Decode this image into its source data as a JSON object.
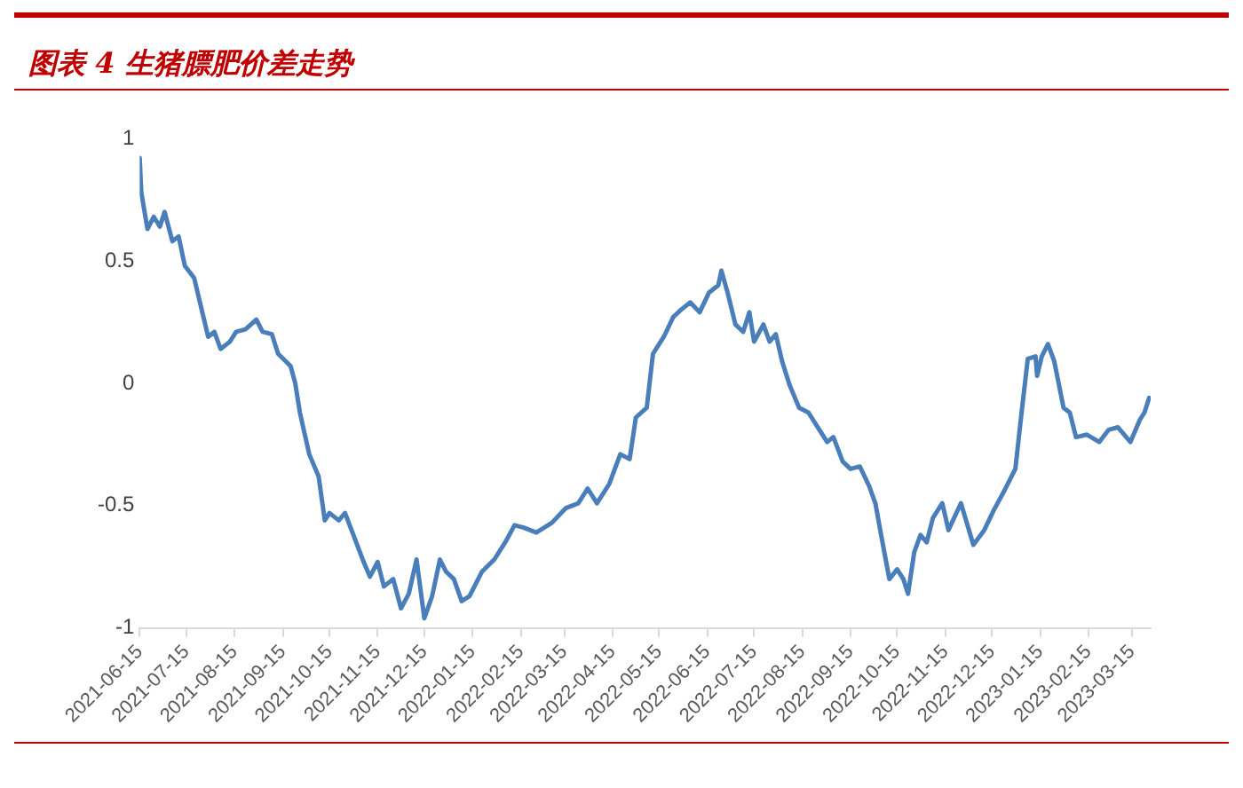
{
  "chart_data": {
    "type": "line",
    "title": "图表 4 生猪膘肥价差走势",
    "x": [
      "2021-06-15",
      "2021-06-16",
      "2021-06-20",
      "2021-06-24",
      "2021-06-28",
      "2021-07-01",
      "2021-07-06",
      "2021-07-10",
      "2021-07-14",
      "2021-07-20",
      "2021-07-26",
      "2021-07-29",
      "2021-08-02",
      "2021-08-06",
      "2021-08-12",
      "2021-08-16",
      "2021-08-22",
      "2021-08-29",
      "2021-09-02",
      "2021-09-08",
      "2021-09-12",
      "2021-09-20",
      "2021-09-23",
      "2021-09-26",
      "2021-10-02",
      "2021-10-08",
      "2021-10-12",
      "2021-10-15",
      "2021-10-21",
      "2021-10-25",
      "2021-10-31",
      "2021-11-06",
      "2021-11-10",
      "2021-11-15",
      "2021-11-19",
      "2021-11-25",
      "2021-11-30",
      "2021-12-05",
      "2021-12-10",
      "2021-12-15",
      "2021-12-20",
      "2021-12-25",
      "2021-12-29",
      "2022-01-03",
      "2022-01-08",
      "2022-01-13",
      "2022-01-21",
      "2022-01-29",
      "2022-02-05",
      "2022-02-11",
      "2022-02-17",
      "2022-02-25",
      "2022-03-07",
      "2022-03-16",
      "2022-03-24",
      "2022-03-30",
      "2022-04-05",
      "2022-04-13",
      "2022-04-20",
      "2022-04-26",
      "2022-04-30",
      "2022-05-07",
      "2022-05-11",
      "2022-05-18",
      "2022-05-24",
      "2022-05-29",
      "2022-06-04",
      "2022-06-10",
      "2022-06-16",
      "2022-06-22",
      "2022-06-24",
      "2022-06-28",
      "2022-07-03",
      "2022-07-08",
      "2022-07-12",
      "2022-07-15",
      "2022-07-21",
      "2022-07-25",
      "2022-07-29",
      "2022-08-02",
      "2022-08-07",
      "2022-08-13",
      "2022-08-19",
      "2022-08-25",
      "2022-08-31",
      "2022-09-04",
      "2022-09-10",
      "2022-09-15",
      "2022-09-21",
      "2022-09-27",
      "2022-10-01",
      "2022-10-05",
      "2022-10-10",
      "2022-10-15",
      "2022-10-19",
      "2022-10-22",
      "2022-10-26",
      "2022-10-30",
      "2022-11-03",
      "2022-11-07",
      "2022-11-13",
      "2022-11-17",
      "2022-11-25",
      "2022-12-03",
      "2022-12-10",
      "2022-12-16",
      "2022-12-22",
      "2022-12-30",
      "2023-01-03",
      "2023-01-07",
      "2023-01-12",
      "2023-01-13",
      "2023-01-16",
      "2023-01-20",
      "2023-01-24",
      "2023-01-30",
      "2023-02-03",
      "2023-02-07",
      "2023-02-14",
      "2023-02-22",
      "2023-02-28",
      "2023-03-06",
      "2023-03-14",
      "2023-03-20",
      "2023-03-23",
      "2023-03-26"
    ],
    "series": [
      {
        "color": "#4a7ebb",
        "values": [
          0.92,
          0.78,
          0.63,
          0.68,
          0.64,
          0.7,
          0.58,
          0.6,
          0.48,
          0.43,
          0.27,
          0.19,
          0.21,
          0.14,
          0.17,
          0.21,
          0.22,
          0.26,
          0.21,
          0.2,
          0.12,
          0.07,
          0.0,
          -0.12,
          -0.29,
          -0.38,
          -0.56,
          -0.53,
          -0.56,
          -0.53,
          -0.63,
          -0.73,
          -0.79,
          -0.73,
          -0.83,
          -0.8,
          -0.92,
          -0.86,
          -0.72,
          -0.96,
          -0.87,
          -0.72,
          -0.77,
          -0.8,
          -0.89,
          -0.87,
          -0.77,
          -0.72,
          -0.65,
          -0.58,
          -0.59,
          -0.61,
          -0.57,
          -0.51,
          -0.49,
          -0.43,
          -0.49,
          -0.41,
          -0.29,
          -0.31,
          -0.14,
          -0.1,
          0.12,
          0.19,
          0.27,
          0.3,
          0.33,
          0.29,
          0.37,
          0.4,
          0.46,
          0.37,
          0.24,
          0.21,
          0.29,
          0.17,
          0.24,
          0.17,
          0.2,
          0.09,
          -0.01,
          -0.1,
          -0.12,
          -0.18,
          -0.24,
          -0.22,
          -0.32,
          -0.35,
          -0.34,
          -0.42,
          -0.49,
          -0.63,
          -0.8,
          -0.76,
          -0.8,
          -0.86,
          -0.69,
          -0.62,
          -0.65,
          -0.55,
          -0.49,
          -0.6,
          -0.49,
          -0.66,
          -0.6,
          -0.52,
          -0.45,
          -0.35,
          -0.12,
          0.1,
          0.11,
          0.03,
          0.11,
          0.16,
          0.09,
          -0.1,
          -0.12,
          -0.22,
          -0.21,
          -0.24,
          -0.19,
          -0.18,
          -0.24,
          -0.15,
          -0.12,
          -0.06
        ]
      }
    ],
    "xlim": [
      "2021-06-15",
      "2023-03-27"
    ],
    "xticks": [
      "2021-06-15",
      "2021-07-15",
      "2021-08-15",
      "2021-09-15",
      "2021-10-15",
      "2021-11-15",
      "2021-12-15",
      "2022-01-15",
      "2022-02-15",
      "2022-03-15",
      "2022-04-15",
      "2022-05-15",
      "2022-06-15",
      "2022-07-15",
      "2022-08-15",
      "2022-09-15",
      "2022-10-15",
      "2022-11-15",
      "2022-12-15",
      "2023-01-15",
      "2023-02-15",
      "2023-03-15"
    ],
    "ylim": [
      -1,
      1
    ],
    "yticks": [
      -1,
      -0.5,
      0,
      0.5,
      1
    ],
    "grid": false,
    "marker": "none",
    "line_style": "solid"
  }
}
